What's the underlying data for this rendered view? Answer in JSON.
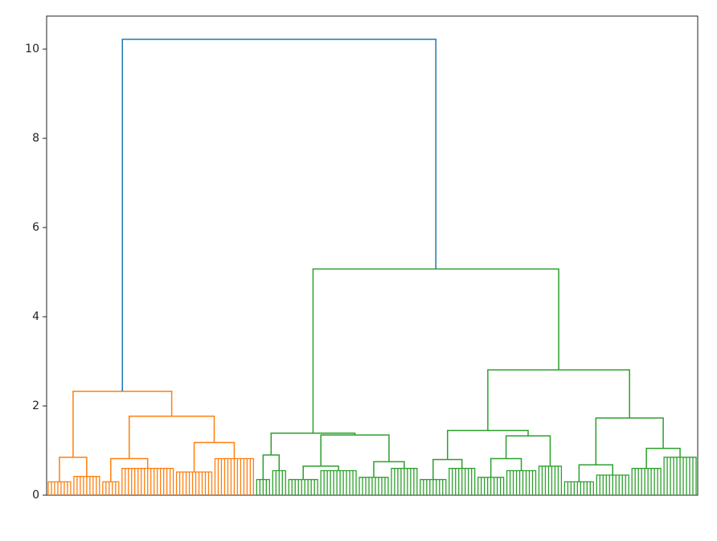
{
  "chart_data": {
    "type": "dendrogram",
    "ylim": [
      0,
      10.74
    ],
    "yticks": [
      0,
      2,
      4,
      6,
      8,
      10
    ],
    "tree": {
      "height": 10.22,
      "color": "#1f77b4",
      "children": [
        {
          "height": 2.33,
          "color": "#ff7f0e",
          "children": [
            {
              "height": 0.85,
              "children": [
                {
                  "height": 0.3,
                  "leaves": 8
                },
                {
                  "height": 0.42,
                  "leaves": 9
                }
              ]
            },
            {
              "height": 1.77,
              "children": [
                {
                  "height": 0.82,
                  "children": [
                    {
                      "height": 0.3,
                      "leaves": 6
                    },
                    {
                      "height": 0.6,
                      "leaves": 17
                    }
                  ]
                },
                {
                  "height": 1.18,
                  "children": [
                    {
                      "height": 0.52,
                      "leaves": 12
                    },
                    {
                      "height": 0.82,
                      "leaves": 13
                    }
                  ]
                }
              ]
            }
          ]
        },
        {
          "height": 5.07,
          "color": "#2ca02c",
          "children": [
            {
              "height": 1.39,
              "children": [
                {
                  "height": 0.9,
                  "children": [
                    {
                      "height": 0.35,
                      "leaves": 5
                    },
                    {
                      "height": 0.55,
                      "leaves": 5
                    }
                  ]
                },
                {
                  "height": 1.35,
                  "children": [
                    {
                      "height": 0.65,
                      "children": [
                        {
                          "height": 0.35,
                          "leaves": 10
                        },
                        {
                          "height": 0.55,
                          "leaves": 12
                        }
                      ]
                    },
                    {
                      "height": 0.75,
                      "children": [
                        {
                          "height": 0.4,
                          "leaves": 10
                        },
                        {
                          "height": 0.6,
                          "leaves": 9
                        }
                      ]
                    }
                  ]
                }
              ]
            },
            {
              "height": 2.81,
              "children": [
                {
                  "height": 1.45,
                  "children": [
                    {
                      "height": 0.8,
                      "children": [
                        {
                          "height": 0.35,
                          "leaves": 9
                        },
                        {
                          "height": 0.6,
                          "leaves": 9
                        }
                      ]
                    },
                    {
                      "height": 1.33,
                      "children": [
                        {
                          "height": 0.82,
                          "children": [
                            {
                              "height": 0.4,
                              "leaves": 9
                            },
                            {
                              "height": 0.55,
                              "leaves": 10
                            }
                          ]
                        },
                        {
                          "height": 0.65,
                          "leaves": 8
                        }
                      ]
                    }
                  ]
                },
                {
                  "height": 1.73,
                  "children": [
                    {
                      "height": 0.68,
                      "children": [
                        {
                          "height": 0.3,
                          "leaves": 10
                        },
                        {
                          "height": 0.45,
                          "leaves": 11
                        }
                      ]
                    },
                    {
                      "height": 1.05,
                      "children": [
                        {
                          "height": 0.6,
                          "leaves": 10
                        },
                        {
                          "height": 0.85,
                          "leaves": 11
                        }
                      ]
                    }
                  ]
                }
              ]
            }
          ]
        }
      ]
    }
  }
}
